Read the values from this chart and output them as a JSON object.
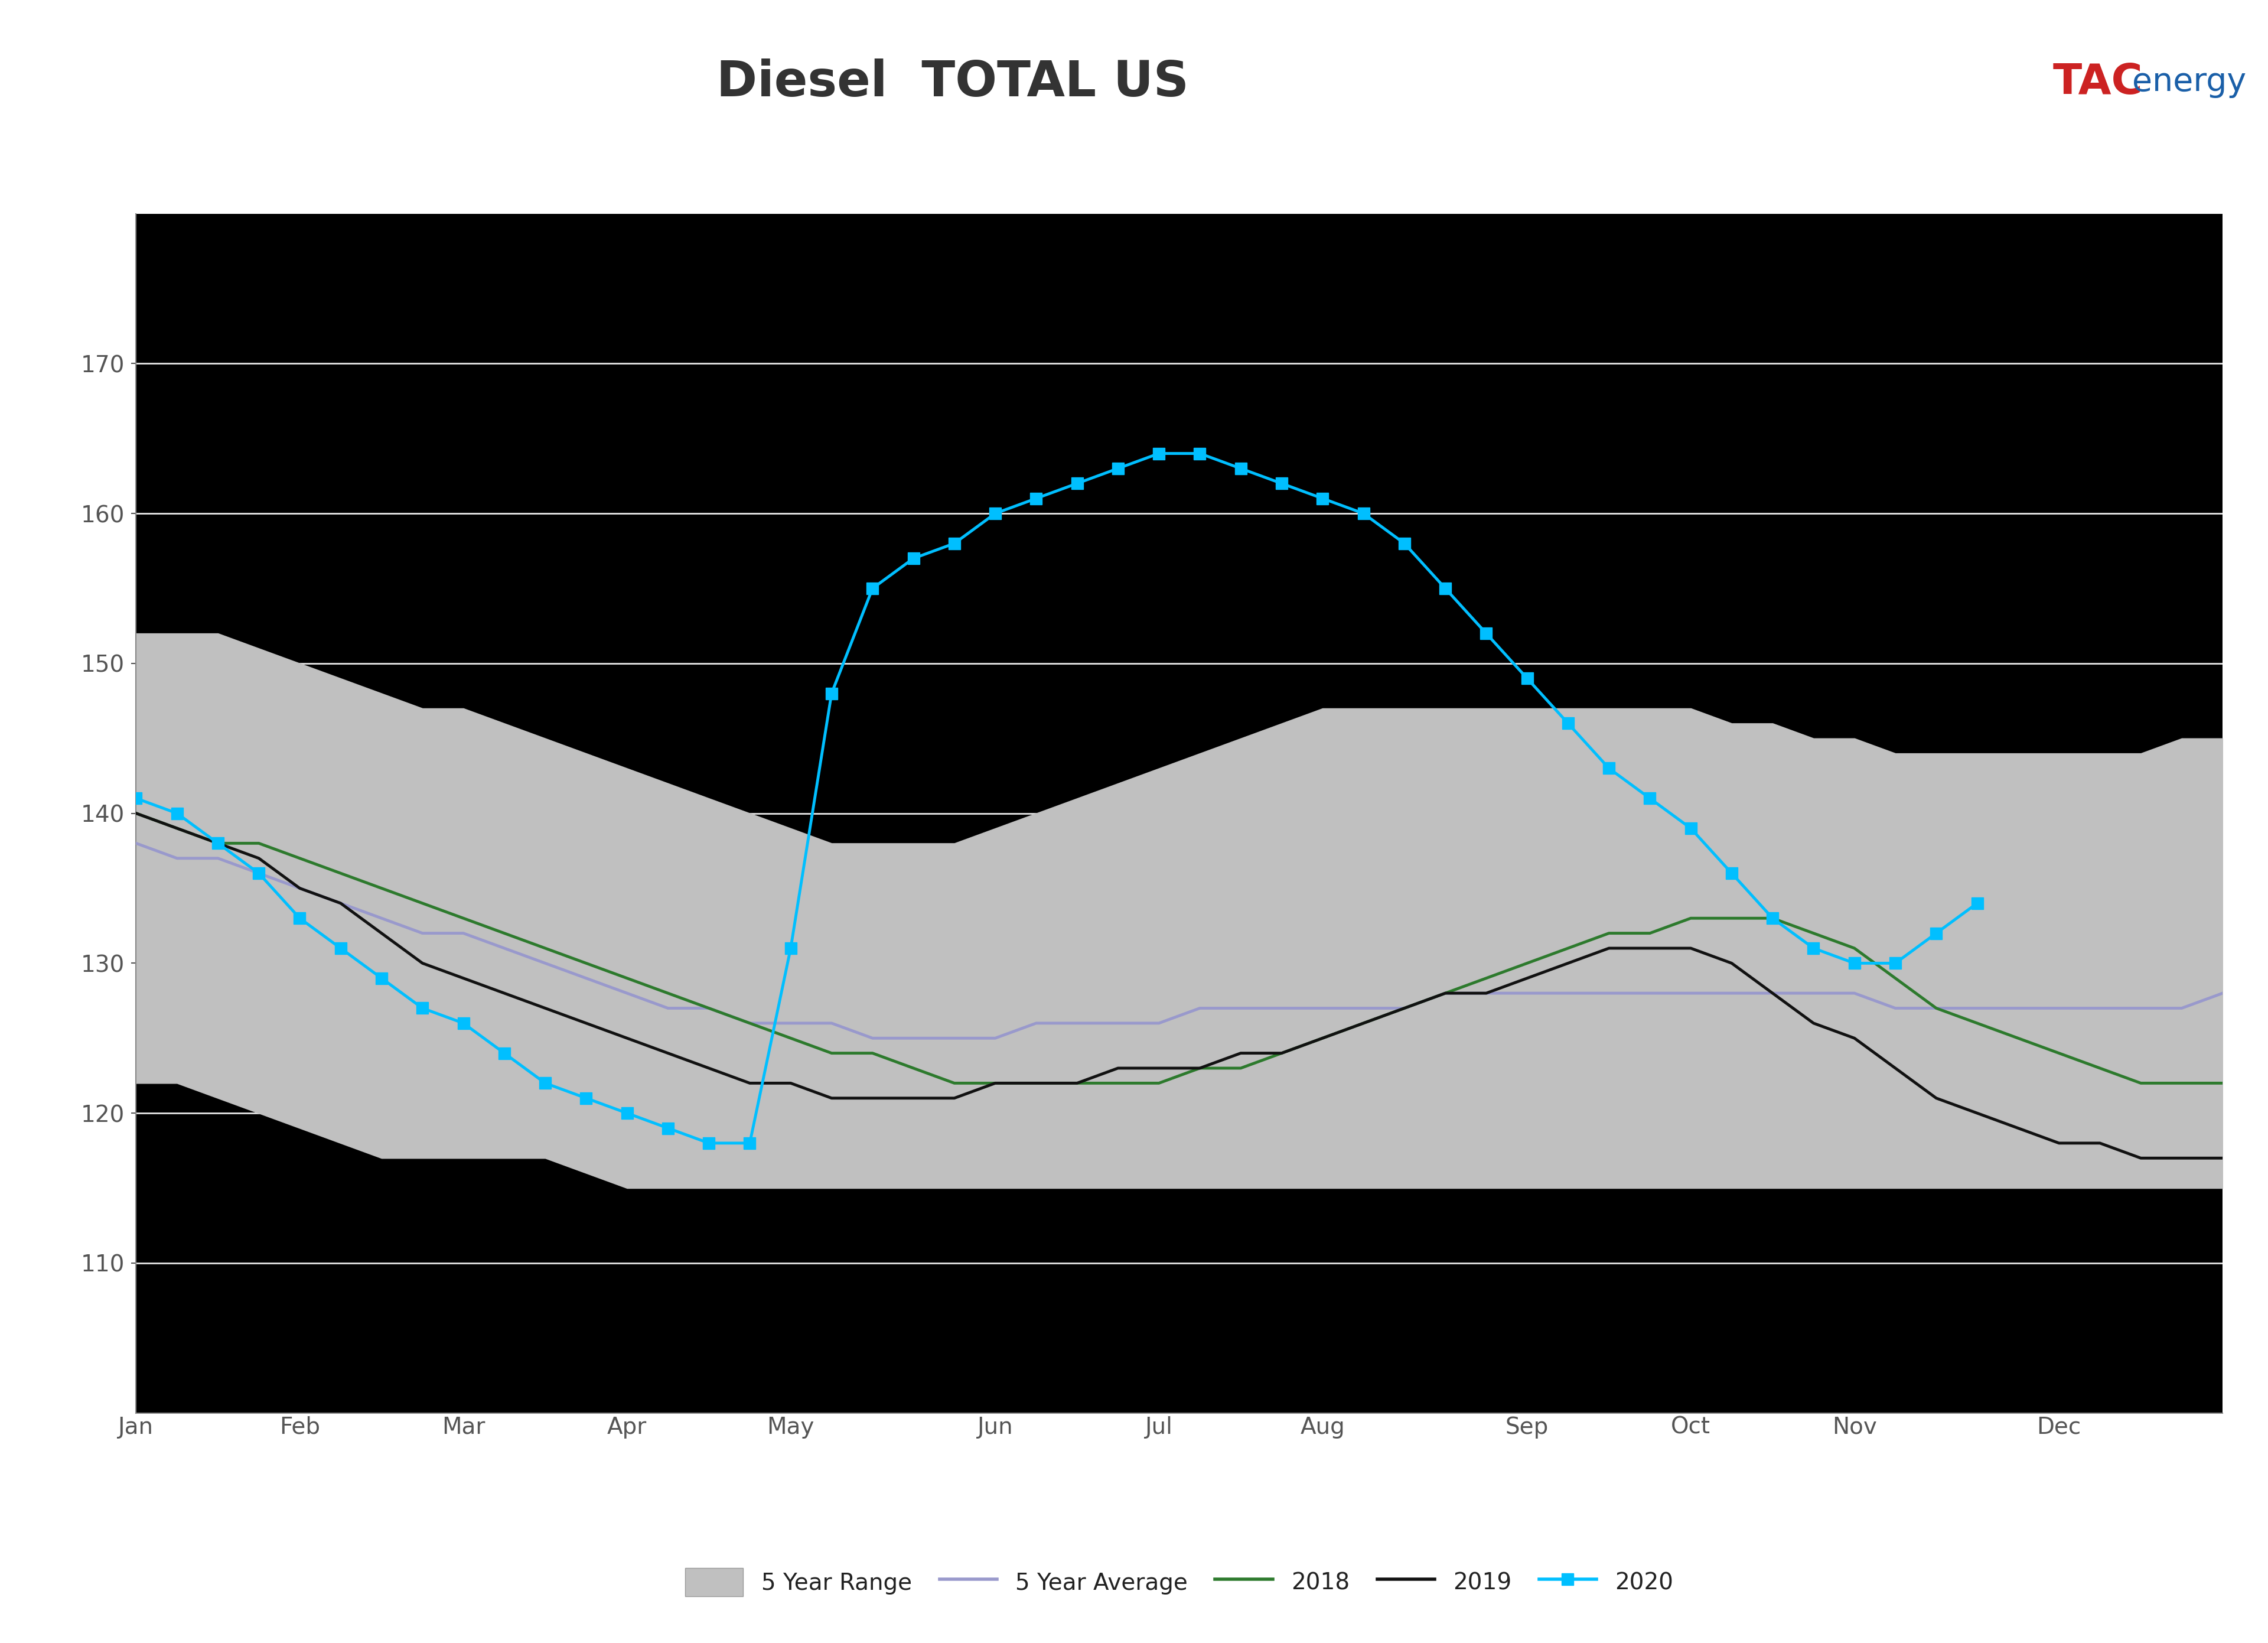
{
  "title": "Diesel  TOTAL US",
  "header_bg": "#c8c8c8",
  "blue_bar": "#1a5fa8",
  "chart_bg": "#ffffff",
  "outer_bg": "#ffffff",
  "grid_color": "#ffffff",
  "range_color": "#c0c0c0",
  "avg_color": "#9999cc",
  "color_2018": "#2d7a2d",
  "color_2019": "#111111",
  "color_2020": "#00bfff",
  "tac_red": "#cc2222",
  "tac_blue": "#1a5fa8",
  "weeks": [
    1,
    2,
    3,
    4,
    5,
    6,
    7,
    8,
    9,
    10,
    11,
    12,
    13,
    14,
    15,
    16,
    17,
    18,
    19,
    20,
    21,
    22,
    23,
    24,
    25,
    26,
    27,
    28,
    29,
    30,
    31,
    32,
    33,
    34,
    35,
    36,
    37,
    38,
    39,
    40,
    41,
    42,
    43,
    44,
    45,
    46,
    47,
    48,
    49,
    50,
    51,
    52
  ],
  "range_upper": [
    152,
    152,
    152,
    151,
    150,
    149,
    148,
    147,
    147,
    146,
    145,
    144,
    143,
    142,
    141,
    140,
    139,
    138,
    138,
    138,
    138,
    139,
    140,
    141,
    142,
    143,
    144,
    145,
    146,
    147,
    147,
    147,
    147,
    147,
    147,
    147,
    147,
    147,
    147,
    146,
    146,
    145,
    145,
    144,
    144,
    144,
    144,
    144,
    144,
    144,
    145,
    145
  ],
  "range_lower": [
    122,
    122,
    121,
    120,
    119,
    118,
    117,
    117,
    117,
    117,
    117,
    116,
    115,
    115,
    115,
    115,
    115,
    115,
    115,
    115,
    115,
    115,
    115,
    115,
    115,
    115,
    115,
    115,
    115,
    115,
    115,
    115,
    115,
    115,
    115,
    115,
    115,
    115,
    115,
    115,
    115,
    115,
    115,
    115,
    115,
    115,
    115,
    115,
    115,
    115,
    115,
    115
  ],
  "avg_5yr": [
    138,
    137,
    137,
    136,
    135,
    134,
    133,
    132,
    132,
    131,
    130,
    129,
    128,
    127,
    127,
    126,
    126,
    126,
    125,
    125,
    125,
    125,
    126,
    126,
    126,
    126,
    127,
    127,
    127,
    127,
    127,
    127,
    128,
    128,
    128,
    128,
    128,
    128,
    128,
    128,
    128,
    128,
    128,
    127,
    127,
    127,
    127,
    127,
    127,
    127,
    127,
    128
  ],
  "line_2018": [
    140,
    139,
    138,
    138,
    137,
    136,
    135,
    134,
    133,
    132,
    131,
    130,
    129,
    128,
    127,
    126,
    125,
    124,
    124,
    123,
    122,
    122,
    122,
    122,
    122,
    122,
    123,
    123,
    124,
    125,
    126,
    127,
    128,
    129,
    130,
    131,
    132,
    132,
    133,
    133,
    133,
    132,
    131,
    129,
    127,
    126,
    125,
    124,
    123,
    122,
    122,
    122
  ],
  "line_2019": [
    140,
    139,
    138,
    137,
    135,
    134,
    132,
    130,
    129,
    128,
    127,
    126,
    125,
    124,
    123,
    122,
    122,
    121,
    121,
    121,
    121,
    122,
    122,
    122,
    123,
    123,
    123,
    124,
    124,
    125,
    126,
    127,
    128,
    128,
    129,
    130,
    131,
    131,
    131,
    130,
    128,
    126,
    125,
    123,
    121,
    120,
    119,
    118,
    118,
    117,
    117,
    117
  ],
  "line_2020_x": [
    1,
    2,
    3,
    4,
    5,
    6,
    7,
    8,
    9,
    10,
    11,
    12,
    13,
    14,
    15,
    16,
    17,
    18,
    19,
    20,
    21,
    22,
    23,
    24,
    25,
    26,
    27,
    28,
    29,
    30,
    31,
    32,
    33,
    34,
    35,
    36,
    37,
    38,
    39,
    40,
    41,
    42,
    43,
    44,
    45,
    46
  ],
  "line_2020_y": [
    141,
    140,
    138,
    136,
    133,
    131,
    129,
    127,
    126,
    124,
    122,
    121,
    120,
    119,
    118,
    118,
    131,
    148,
    155,
    157,
    158,
    160,
    161,
    162,
    163,
    164,
    164,
    163,
    162,
    161,
    160,
    158,
    155,
    152,
    149,
    146,
    143,
    141,
    139,
    136,
    133,
    131,
    130,
    130,
    132,
    134
  ],
  "ylim_low": 100,
  "ylim_high": 180,
  "ytick_start": 110,
  "ytick_end": 170,
  "ytick_step": 10,
  "month_ticks": [
    1,
    5,
    9,
    13,
    17,
    22,
    26,
    30,
    35,
    39,
    43,
    48
  ],
  "month_labels": [
    "Jan",
    "Feb",
    "Mar",
    "Apr",
    "May",
    "Jun",
    "Jul",
    "Aug",
    "Sep",
    "Oct",
    "Nov",
    "Dec"
  ],
  "legend_labels": [
    "5 Year Range",
    "5 Year Average",
    "2018",
    "2019",
    "2020"
  ],
  "title_fontsize": 60,
  "tick_fontsize": 28,
  "legend_fontsize": 28,
  "linewidth_main": 3.5,
  "linewidth_2020": 3.5,
  "marker_size": 14
}
